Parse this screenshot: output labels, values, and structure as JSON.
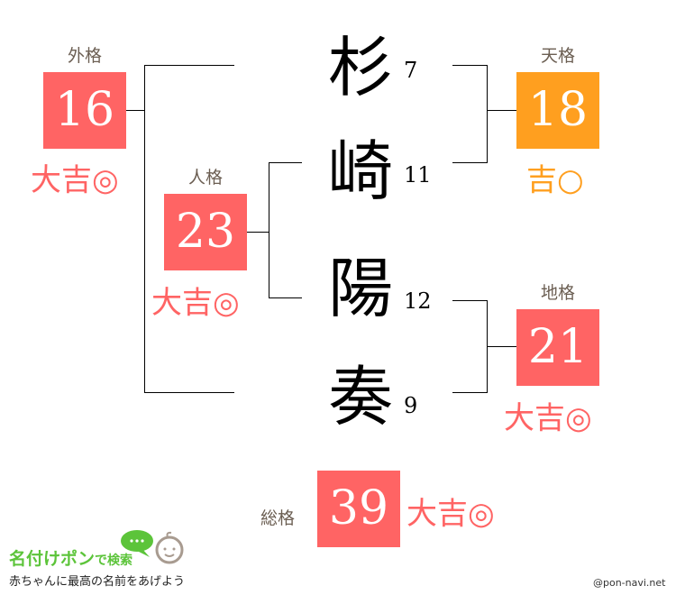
{
  "colors": {
    "good": "#ff6464",
    "ok": "#ff9f1f",
    "label": "#6b5e52"
  },
  "name": [
    {
      "char": "杉",
      "strokes": "7"
    },
    {
      "char": "崎",
      "strokes": "11"
    },
    {
      "char": "陽",
      "strokes": "12"
    },
    {
      "char": "奏",
      "strokes": "9"
    }
  ],
  "gaikaku": {
    "label": "外格",
    "value": "16",
    "fortune": "大吉◎"
  },
  "tenkaku": {
    "label": "天格",
    "value": "18",
    "fortune": "吉○"
  },
  "jinkaku": {
    "label": "人格",
    "value": "23",
    "fortune": "大吉◎"
  },
  "chikaku": {
    "label": "地格",
    "value": "21",
    "fortune": "大吉◎"
  },
  "soukaku": {
    "label": "総格",
    "value": "39",
    "fortune": "大吉◎"
  },
  "logo": {
    "title": "名付けポン",
    "suffix": "で検索",
    "tagline": "赤ちゃんに最高の名前をあげよう"
  },
  "credit": "@pon-navi.net"
}
